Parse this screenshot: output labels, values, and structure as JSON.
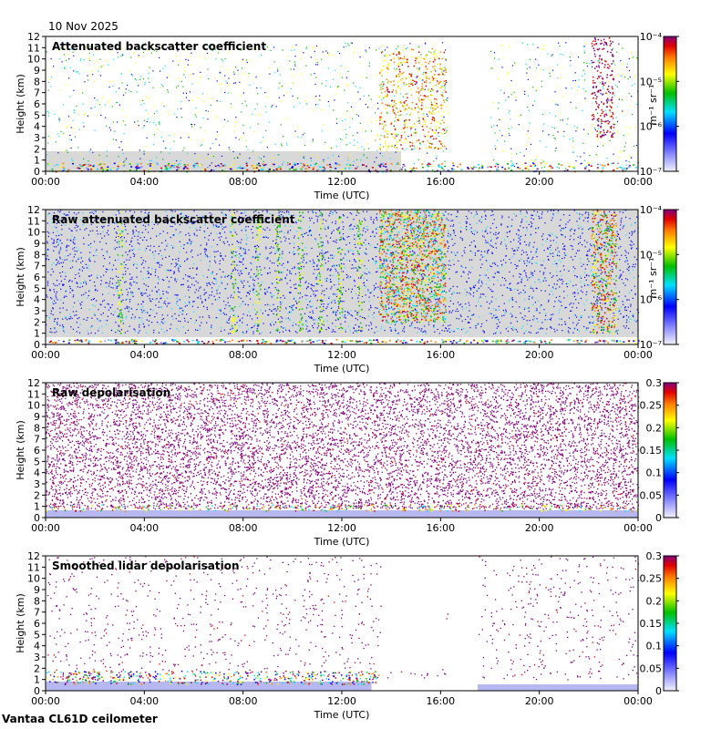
{
  "header": {
    "date": "10 Nov 2025"
  },
  "footer": {
    "station": "Vantaa CL61D ceilometer"
  },
  "chart_data": [
    {
      "type": "heatmap",
      "title": "Attenuated backscatter coefficient",
      "xlabel": "Time (UTC)",
      "ylabel": "Height (km)",
      "x_ticks": [
        "00:00",
        "04:00",
        "08:00",
        "12:00",
        "16:00",
        "20:00",
        "00:00"
      ],
      "y_ticks": [
        "0",
        "1",
        "2",
        "3",
        "4",
        "5",
        "6",
        "7",
        "8",
        "9",
        "10",
        "11",
        "12"
      ],
      "ylim": [
        0,
        12
      ],
      "xlim_hours": [
        0,
        24
      ],
      "colorbar": {
        "scale": "log",
        "ticks": [
          "10⁻⁴",
          "10⁻⁵",
          "10⁻⁶",
          "10⁻⁷"
        ],
        "label": "m⁻¹ sr⁻¹"
      }
    },
    {
      "type": "heatmap",
      "title": "Raw attenuated backscatter coefficient",
      "xlabel": "Time (UTC)",
      "ylabel": "Height (km)",
      "x_ticks": [
        "00:00",
        "04:00",
        "08:00",
        "12:00",
        "16:00",
        "20:00",
        "00:00"
      ],
      "y_ticks": [
        "0",
        "1",
        "2",
        "3",
        "4",
        "5",
        "6",
        "7",
        "8",
        "9",
        "10",
        "11",
        "12"
      ],
      "ylim": [
        0,
        12
      ],
      "xlim_hours": [
        0,
        24
      ],
      "colorbar": {
        "scale": "log",
        "ticks": [
          "10⁻⁴",
          "10⁻⁵",
          "10⁻⁶",
          "10⁻⁷"
        ],
        "label": "m⁻¹ sr⁻¹"
      }
    },
    {
      "type": "heatmap",
      "title": "Raw depolarisation",
      "xlabel": "Time (UTC)",
      "ylabel": "Height (km)",
      "x_ticks": [
        "00:00",
        "04:00",
        "08:00",
        "12:00",
        "16:00",
        "20:00",
        "00:00"
      ],
      "y_ticks": [
        "0",
        "1",
        "2",
        "3",
        "4",
        "5",
        "6",
        "7",
        "8",
        "9",
        "10",
        "11",
        "12"
      ],
      "ylim": [
        0,
        12
      ],
      "xlim_hours": [
        0,
        24
      ],
      "colorbar": {
        "scale": "linear",
        "ticks": [
          "0.3",
          "0.25",
          "0.2",
          "0.15",
          "0.1",
          "0.05",
          "0"
        ],
        "label": ""
      }
    },
    {
      "type": "heatmap",
      "title": "Smoothed lidar depolarisation",
      "xlabel": "Time (UTC)",
      "ylabel": "Height (km)",
      "x_ticks": [
        "00:00",
        "04:00",
        "08:00",
        "12:00",
        "16:00",
        "20:00",
        "00:00"
      ],
      "y_ticks": [
        "0",
        "1",
        "2",
        "3",
        "4",
        "5",
        "6",
        "7",
        "8",
        "9",
        "10",
        "11",
        "12"
      ],
      "ylim": [
        0,
        12
      ],
      "xlim_hours": [
        0,
        24
      ],
      "colorbar": {
        "scale": "linear",
        "ticks": [
          "0.3",
          "0.25",
          "0.2",
          "0.15",
          "0.1",
          "0.05",
          "0"
        ],
        "label": ""
      }
    }
  ]
}
